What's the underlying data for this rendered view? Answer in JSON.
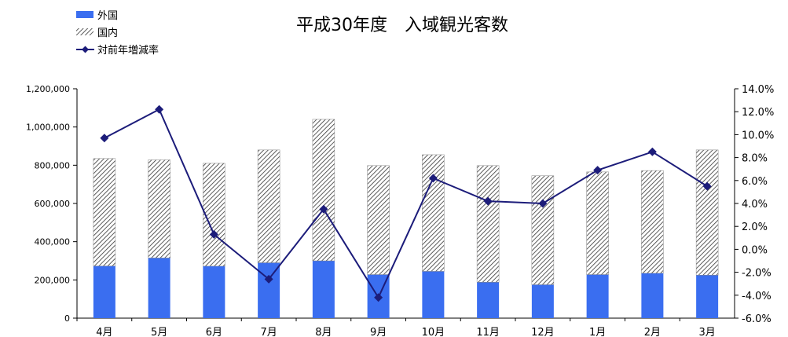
{
  "chart_data": {
    "type": "bar",
    "title": "平成30年度　入域観光客数",
    "categories": [
      "4月",
      "5月",
      "6月",
      "7月",
      "8月",
      "9月",
      "10月",
      "11月",
      "12月",
      "1月",
      "2月",
      "3月"
    ],
    "series": [
      {
        "name": "外国",
        "type": "bar",
        "stack": "total",
        "axis": "left",
        "color": "#3a6ef0",
        "values": [
          273000,
          315000,
          272000,
          290000,
          300000,
          228000,
          245000,
          188000,
          175000,
          228000,
          235000,
          225000
        ]
      },
      {
        "name": "国内",
        "type": "bar",
        "stack": "total",
        "axis": "left",
        "pattern": "diagonal-hatch",
        "values": [
          562000,
          513000,
          538000,
          590000,
          740000,
          570000,
          610000,
          610000,
          570000,
          537000,
          537000,
          655000
        ]
      },
      {
        "name": "対前年増減率",
        "type": "line",
        "axis": "right",
        "color": "#1c1c7a",
        "marker": "diamond",
        "values": [
          9.7,
          12.2,
          1.3,
          -2.6,
          3.5,
          -4.2,
          6.2,
          4.2,
          4.0,
          6.9,
          8.5,
          5.5
        ]
      }
    ],
    "yleft": {
      "min": 0,
      "max": 1200000,
      "step": 200000,
      "ticks": [
        "0",
        "200,000",
        "400,000",
        "600,000",
        "800,000",
        "1,000,000",
        "1,200,000"
      ]
    },
    "yright": {
      "min": -6.0,
      "max": 14.0,
      "step": 2.0,
      "ticks": [
        "-6.0%",
        "-4.0%",
        "-2.0%",
        "0.0%",
        "2.0%",
        "4.0%",
        "6.0%",
        "8.0%",
        "10.0%",
        "12.0%",
        "14.0%"
      ]
    },
    "legend_placement": "top-left",
    "grid": false
  }
}
